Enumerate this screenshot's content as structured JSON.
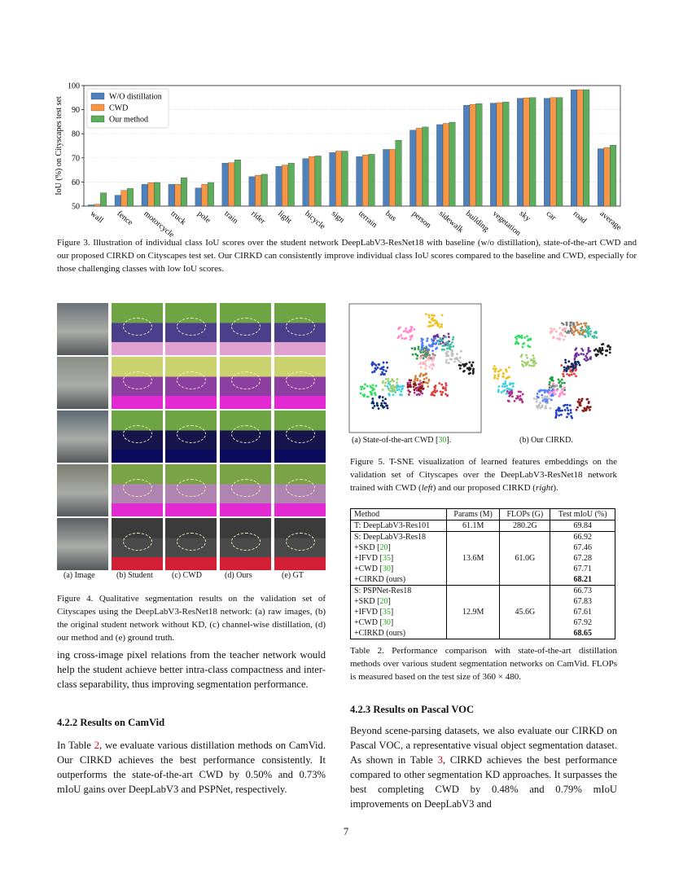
{
  "chart_data": {
    "type": "bar",
    "y_label": "IoU (%) on Cityscapes test set",
    "categories": [
      "wall",
      "fence",
      "motorcycle",
      "truck",
      "pole",
      "train",
      "rider",
      "light",
      "bicycle",
      "sign",
      "terrain",
      "bus",
      "person",
      "sidewalk",
      "building",
      "vegetation",
      "sky",
      "car",
      "road",
      "average"
    ],
    "series": [
      {
        "name": "W/O distillation",
        "color": "#4f81bd",
        "values": [
          50.5,
          54.5,
          59,
          59,
          57.5,
          67.8,
          62.2,
          66.5,
          69.7,
          72.2,
          70.5,
          73.5,
          81.5,
          83.8,
          91.8,
          92.7,
          94.7,
          94.7,
          98.2,
          73.8
        ]
      },
      {
        "name": "CWD",
        "color": "#f79646",
        "values": [
          50.8,
          56.5,
          59.7,
          59,
          59,
          68,
          62.8,
          67,
          70.5,
          72.8,
          71.2,
          73.5,
          82.3,
          84.3,
          92.2,
          92.9,
          94.9,
          95,
          98.3,
          74.3
        ]
      },
      {
        "name": "Our method",
        "color": "#5cae5c",
        "values": [
          55.5,
          57.3,
          59.8,
          61.8,
          59.8,
          69.2,
          63.2,
          67.8,
          70.8,
          72.8,
          71.5,
          77.3,
          82.8,
          84.8,
          92.5,
          93.2,
          95,
          95,
          98.3,
          75.3
        ]
      }
    ],
    "ylim": [
      50,
      100
    ],
    "yticks": [
      50,
      60,
      70,
      80,
      90,
      100
    ],
    "grid": true,
    "legend": "upper left"
  },
  "figure3_caption": "Figure 3.  Illustration of individual class IoU scores over the student network DeepLabV3-ResNet18 with baseline (w/o distillation), state-of-the-art CWD and our proposed CIRKD on Cityscapes test set. Our CIRKD can consistently improve individual class IoU scores compared to the baseline and CWD, especially for those challenging classes with low IoU scores.",
  "figure4": {
    "labels": [
      "(a) Image",
      "(b) Student",
      "(c) CWD",
      "(d) Ours",
      "(e) GT"
    ],
    "caption": "Figure 4.  Qualitative segmentation results on the validation set of Cityscapes using the DeepLabV3-ResNet18 network: (a) raw images, (b) the original student network without KD, (c) channel-wise distillation, (d) our method and (e) ground truth."
  },
  "figure5": {
    "label_a": [
      "(a) State-of-the-art CWD [",
      "30",
      "]."
    ],
    "label_b": "(b) Our CIRKD.",
    "caption": [
      "Figure 5.  T-SNE visualization of learned features embeddings on the validation set of Cityscapes over the DeepLabV3-ResNet18 network trained with CWD (",
      "left",
      ") and our proposed CIRKD (",
      "right",
      ")."
    ]
  },
  "table2": {
    "header": [
      "Method",
      "Params (M)",
      "FLOPs (G)",
      "Test mIoU (%)"
    ],
    "teacher": [
      "T: DeepLabV3-Res101",
      "61.1M",
      "280.2G",
      69.84
    ],
    "group1": {
      "params": "13.6M",
      "flops": "61.0G",
      "rows": [
        [
          "S: DeepLabV3-Res18",
          66.92
        ],
        [
          [
            "+SKD [",
            "20",
            "]"
          ],
          67.46
        ],
        [
          [
            "+IFVD [",
            "35",
            "]"
          ],
          67.28
        ],
        [
          [
            "+CWD [",
            "30",
            "]"
          ],
          67.71
        ],
        [
          "+CIRKD (ours)",
          68.21
        ]
      ]
    },
    "group2": {
      "params": "12.9M",
      "flops": "45.6G",
      "rows": [
        [
          "S: PSPNet-Res18",
          66.73
        ],
        [
          [
            "+SKD [",
            "20",
            "]"
          ],
          67.83
        ],
        [
          [
            "+IFVD [",
            "35",
            "]"
          ],
          67.61
        ],
        [
          [
            "+CWD [",
            "30",
            "]"
          ],
          67.92
        ],
        [
          "+CIRKD (ours)",
          68.65
        ]
      ]
    },
    "caption": "Table 2. Performance comparison with state-of-the-art distillation methods over various student segmentation networks on CamVid. FLOPs is measured based on the test size of 360 × 480."
  },
  "left_column": {
    "paragraph": "ing cross-image pixel relations from the teacher network would help the student achieve better intra-class compactness and inter-class separability, thus improving segmentation performance.",
    "section_heading": "4.2.2   Results on CamVid",
    "section_paragraph": [
      "In Table ",
      "2",
      ", we evaluate various distillation methods on CamVid. Our CIRKD achieves the best performance consistently. It outperforms the state-of-the-art CWD by 0.50% and 0.73% mIoU gains over DeepLabV3 and PSPNet, respectively."
    ]
  },
  "right_column": {
    "section_heading": "4.2.3   Results on Pascal VOC",
    "section_paragraph": [
      "Beyond scene-parsing datasets, we also evaluate our CIRKD on Pascal VOC, a representative visual object segmentation dataset. As shown in Table ",
      "3",
      ", CIRKD achieves the best performance compared to other segmentation KD approaches.  It surpasses the best completing CWD by 0.48% and 0.79% mIoU improvements on DeepLabV3 and"
    ]
  },
  "page_number": "7"
}
